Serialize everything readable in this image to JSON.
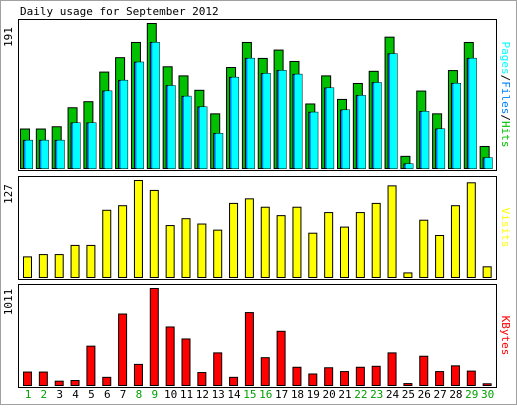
{
  "chart_data": [
    {
      "type": "bar",
      "title": "Daily usage for September 2012",
      "ymax_label": "191",
      "ylim": [
        0,
        191
      ],
      "categories": [
        "1",
        "2",
        "3",
        "4",
        "5",
        "6",
        "7",
        "8",
        "9",
        "10",
        "11",
        "12",
        "13",
        "14",
        "15",
        "16",
        "17",
        "18",
        "19",
        "20",
        "21",
        "22",
        "23",
        "24",
        "25",
        "26",
        "27",
        "28",
        "29",
        "30"
      ],
      "weekend_days": [
        "1",
        "2",
        "8",
        "9",
        "15",
        "16",
        "22",
        "23",
        "29",
        "30"
      ],
      "legend": [
        "Pages",
        "Files",
        "Hits"
      ],
      "series": [
        {
          "name": "Hits",
          "color": "#00c000",
          "values": [
            52,
            52,
            55,
            80,
            88,
            127,
            146,
            166,
            191,
            134,
            122,
            103,
            72,
            133,
            166,
            145,
            156,
            141,
            85,
            122,
            91,
            112,
            128,
            173,
            16,
            102,
            72,
            129,
            166,
            29
          ]
        },
        {
          "name": "Files",
          "color": "#0080ff",
          "values": [
            37,
            37,
            37,
            60,
            60,
            102,
            116,
            140,
            166,
            109,
            95,
            81,
            46,
            120,
            145,
            125,
            129,
            124,
            74,
            106,
            77,
            96,
            113,
            151,
            6,
            75,
            52,
            112,
            145,
            14
          ]
        },
        {
          "name": "Pages",
          "color": "#00ffff",
          "values": [
            37,
            37,
            37,
            60,
            60,
            102,
            116,
            140,
            166,
            109,
            95,
            81,
            46,
            120,
            145,
            125,
            129,
            124,
            74,
            106,
            77,
            96,
            113,
            151,
            6,
            75,
            52,
            112,
            145,
            14
          ]
        }
      ]
    },
    {
      "type": "bar",
      "ymax_label": "127",
      "ylim": [
        0,
        127
      ],
      "categories": [
        "1",
        "2",
        "3",
        "4",
        "5",
        "6",
        "7",
        "8",
        "9",
        "10",
        "11",
        "12",
        "13",
        "14",
        "15",
        "16",
        "17",
        "18",
        "19",
        "20",
        "21",
        "22",
        "23",
        "24",
        "25",
        "26",
        "27",
        "28",
        "29",
        "30"
      ],
      "legend": [
        "Visits"
      ],
      "series": [
        {
          "name": "Visits",
          "color": "#ffff00",
          "values": [
            27,
            30,
            30,
            42,
            42,
            88,
            94,
            127,
            114,
            68,
            77,
            70,
            62,
            97,
            103,
            92,
            81,
            92,
            58,
            85,
            66,
            85,
            97,
            120,
            6,
            75,
            55,
            94,
            124,
            14
          ]
        }
      ]
    },
    {
      "type": "bar",
      "ymax_label": "1011",
      "ylim": [
        0,
        1011
      ],
      "categories": [
        "1",
        "2",
        "3",
        "4",
        "5",
        "6",
        "7",
        "8",
        "9",
        "10",
        "11",
        "12",
        "13",
        "14",
        "15",
        "16",
        "17",
        "18",
        "19",
        "20",
        "21",
        "22",
        "23",
        "24",
        "25",
        "26",
        "27",
        "28",
        "29",
        "30"
      ],
      "legend": [
        "KBytes"
      ],
      "series": [
        {
          "name": "KBytes",
          "color": "#ff0000",
          "values": [
            140,
            140,
            45,
            52,
            410,
            85,
            745,
            220,
            1011,
            610,
            485,
            135,
            340,
            85,
            760,
            290,
            565,
            190,
            120,
            185,
            145,
            190,
            200,
            340,
            20,
            305,
            145,
            205,
            150,
            18
          ]
        }
      ]
    }
  ]
}
